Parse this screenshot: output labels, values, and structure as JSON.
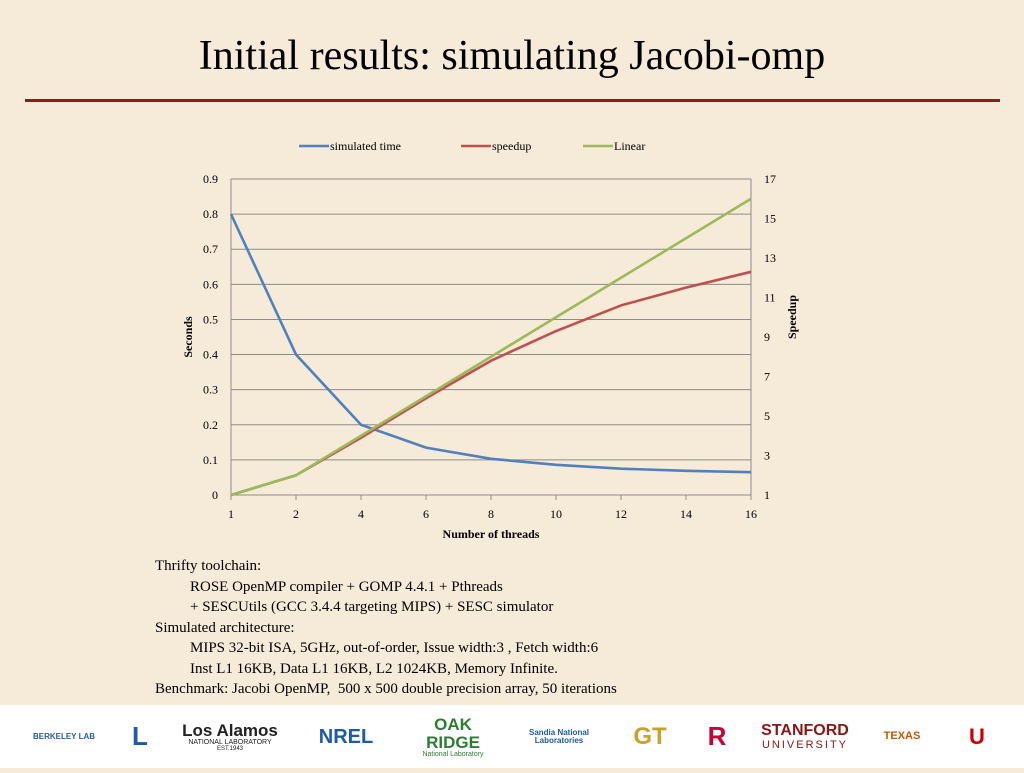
{
  "slide": {
    "title": "Initial results: simulating Jacobi-omp"
  },
  "chart_data": {
    "type": "line",
    "title": "",
    "xlabel": "Number of threads",
    "ylabel": "Seconds",
    "y2label": "Speedup",
    "categories": [
      "1",
      "2",
      "4",
      "6",
      "8",
      "10",
      "12",
      "14",
      "16"
    ],
    "ylim": [
      0,
      0.9
    ],
    "y_ticks": [
      "0",
      "0.1",
      "0.2",
      "0.3",
      "0.4",
      "0.5",
      "0.6",
      "0.7",
      "0.8",
      "0.9"
    ],
    "y2lim": [
      1,
      17
    ],
    "y2_ticks": [
      "1",
      "3",
      "5",
      "7",
      "9",
      "11",
      "13",
      "15",
      "17"
    ],
    "grid": true,
    "legend_position": "top",
    "series": [
      {
        "name": "simulated time",
        "axis": "left",
        "color": "#4f81bd",
        "values": [
          0.8,
          0.4,
          0.2,
          0.135,
          0.103,
          0.086,
          0.075,
          0.069,
          0.065
        ]
      },
      {
        "name": "speedup",
        "axis": "right",
        "color": "#c0504d",
        "values": [
          1,
          2,
          3.9,
          5.9,
          7.8,
          9.3,
          10.6,
          11.5,
          12.3
        ]
      },
      {
        "name": "Linear",
        "axis": "right",
        "color": "#9bbb59",
        "values": [
          1,
          2,
          4,
          6,
          8,
          10,
          12,
          14,
          16
        ]
      }
    ]
  },
  "body": {
    "lines": [
      {
        "text": "Thrifty toolchain:",
        "indent": false
      },
      {
        "text": "ROSE OpenMP compiler + GOMP 4.4.1 + Pthreads",
        "indent": true
      },
      {
        "text": "+ SESCUtils (GCC 3.4.4 targeting MIPS) + SESC simulator",
        "indent": true
      },
      {
        "text": "Simulated architecture:",
        "indent": false
      },
      {
        "text": "MIPS 32-bit ISA, 5GHz, out-of-order, Issue width:3 , Fetch width:6",
        "indent": true
      },
      {
        "text": "Inst L1 16KB, Data L1 16KB, L2 1024KB, Memory Infinite.",
        "indent": true
      },
      {
        "text": "Benchmark: Jacobi OpenMP,  500 x 500 double precision array, 50 iterations",
        "indent": false
      }
    ]
  },
  "footer": {
    "logos": [
      {
        "name": "berkeley-lab-logo",
        "text": "BERKELEY LAB",
        "color": "#2a5d9a"
      },
      {
        "name": "llnl-logo",
        "text": "L",
        "color": "#1d5aa8"
      },
      {
        "name": "los-alamos-logo",
        "text": "Los Alamos",
        "sub": "NATIONAL LABORATORY",
        "sub2": "EST.1943",
        "color": "#222222"
      },
      {
        "name": "nrel-logo",
        "text": "NREL",
        "color": "#1d5aa8"
      },
      {
        "name": "oak-ridge-logo",
        "text": "OAK RIDGE",
        "sub": "National Laboratory",
        "color": "#2e7d32"
      },
      {
        "name": "sandia-logo",
        "text": "Sandia National Laboratories",
        "color": "#1d5aa8"
      },
      {
        "name": "georgia-tech-logo",
        "text": "GT",
        "color": "#c9a227"
      },
      {
        "name": "rutgers-logo",
        "text": "R",
        "color": "#cc0033"
      },
      {
        "name": "stanford-logo",
        "text": "STANFORD",
        "sub": "UNIVERSITY",
        "color": "#8c1515"
      },
      {
        "name": "texas-logo",
        "text": "TEXAS",
        "color": "#bf5700"
      },
      {
        "name": "utah-logo",
        "text": "U",
        "color": "#cc0000"
      }
    ]
  }
}
